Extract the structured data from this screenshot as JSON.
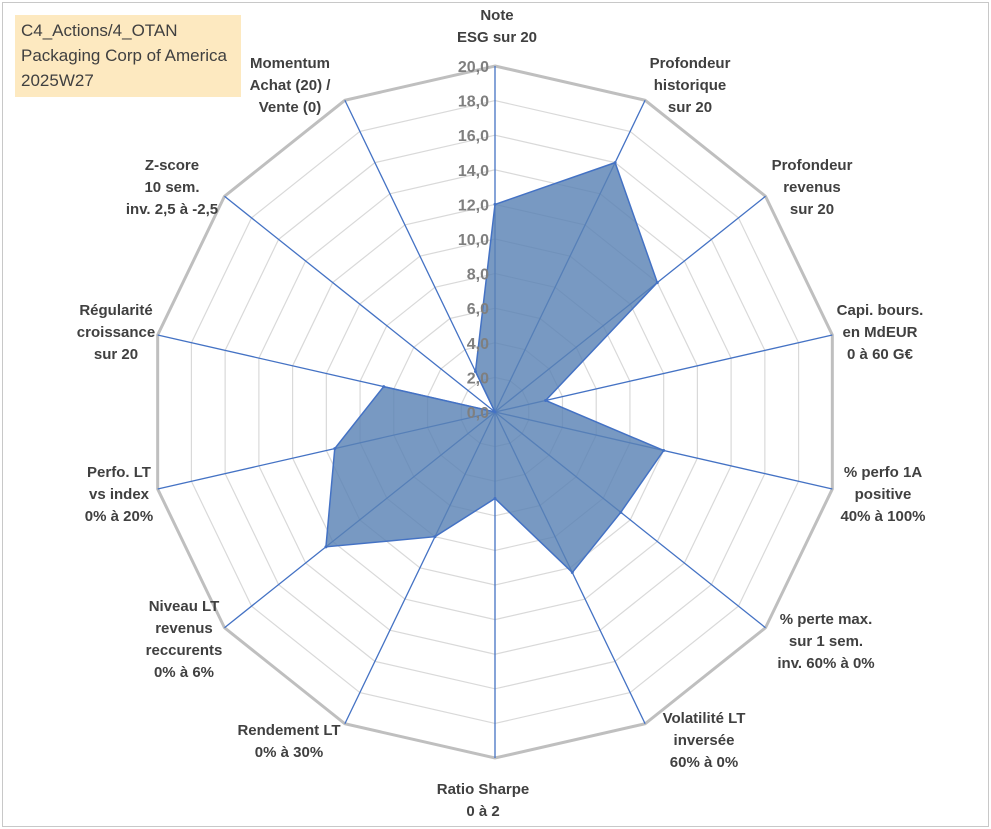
{
  "title_lines": [
    "C4_Actions/4_OTAN",
    "Packaging Corp of America",
    "2025W27"
  ],
  "colors": {
    "grid": "#c0c0c0",
    "axis": "#4472c4",
    "fill": "#5a82b4",
    "stroke": "#4472c4",
    "title_bg": "#fde9c0"
  },
  "chart_data": {
    "type": "radar",
    "r_max": 20,
    "tick_step": 2,
    "ticks": [
      "0,0",
      "2,0",
      "4,0",
      "6,0",
      "8,0",
      "10,0",
      "12,0",
      "14,0",
      "16,0",
      "18,0",
      "20,0"
    ],
    "axes": [
      {
        "label": [
          "Note",
          "ESG sur 20"
        ]
      },
      {
        "label": [
          "Profondeur",
          "historique",
          "sur 20"
        ]
      },
      {
        "label": [
          "Profondeur",
          "revenus",
          "sur 20"
        ]
      },
      {
        "label": [
          "Capi. bours.",
          "en MdEUR",
          "0 à 60 G€"
        ]
      },
      {
        "label": [
          "% perfo 1A",
          "positive",
          "40% à 100%"
        ]
      },
      {
        "label": [
          "% perte max.",
          "sur 1 sem.",
          "inv. 60% à 0%"
        ]
      },
      {
        "label": [
          "Volatilité LT",
          "inversée",
          "60% à 0%"
        ]
      },
      {
        "label": [
          "Ratio Sharpe",
          "0 à 2"
        ]
      },
      {
        "label": [
          "Rendement LT",
          "0% à 30%"
        ]
      },
      {
        "label": [
          "Niveau LT",
          "revenus",
          "reccurents",
          "0% à 6%"
        ]
      },
      {
        "label": [
          "Perfo. LT",
          "vs index",
          "0% à 20%"
        ]
      },
      {
        "label": [
          "Régularité",
          "croissance",
          "sur 20"
        ]
      },
      {
        "label": [
          "Z-score",
          "10 sem.",
          "inv. 2,5 à -2,5"
        ]
      },
      {
        "label": [
          "Momentum",
          "Achat (20) /",
          "Vente (0)"
        ]
      }
    ],
    "values": [
      12.0,
      16.0,
      12.0,
      3.0,
      10.0,
      9.3,
      10.3,
      5.0,
      8.0,
      12.5,
      9.5,
      6.6,
      0.0,
      2.6
    ]
  }
}
